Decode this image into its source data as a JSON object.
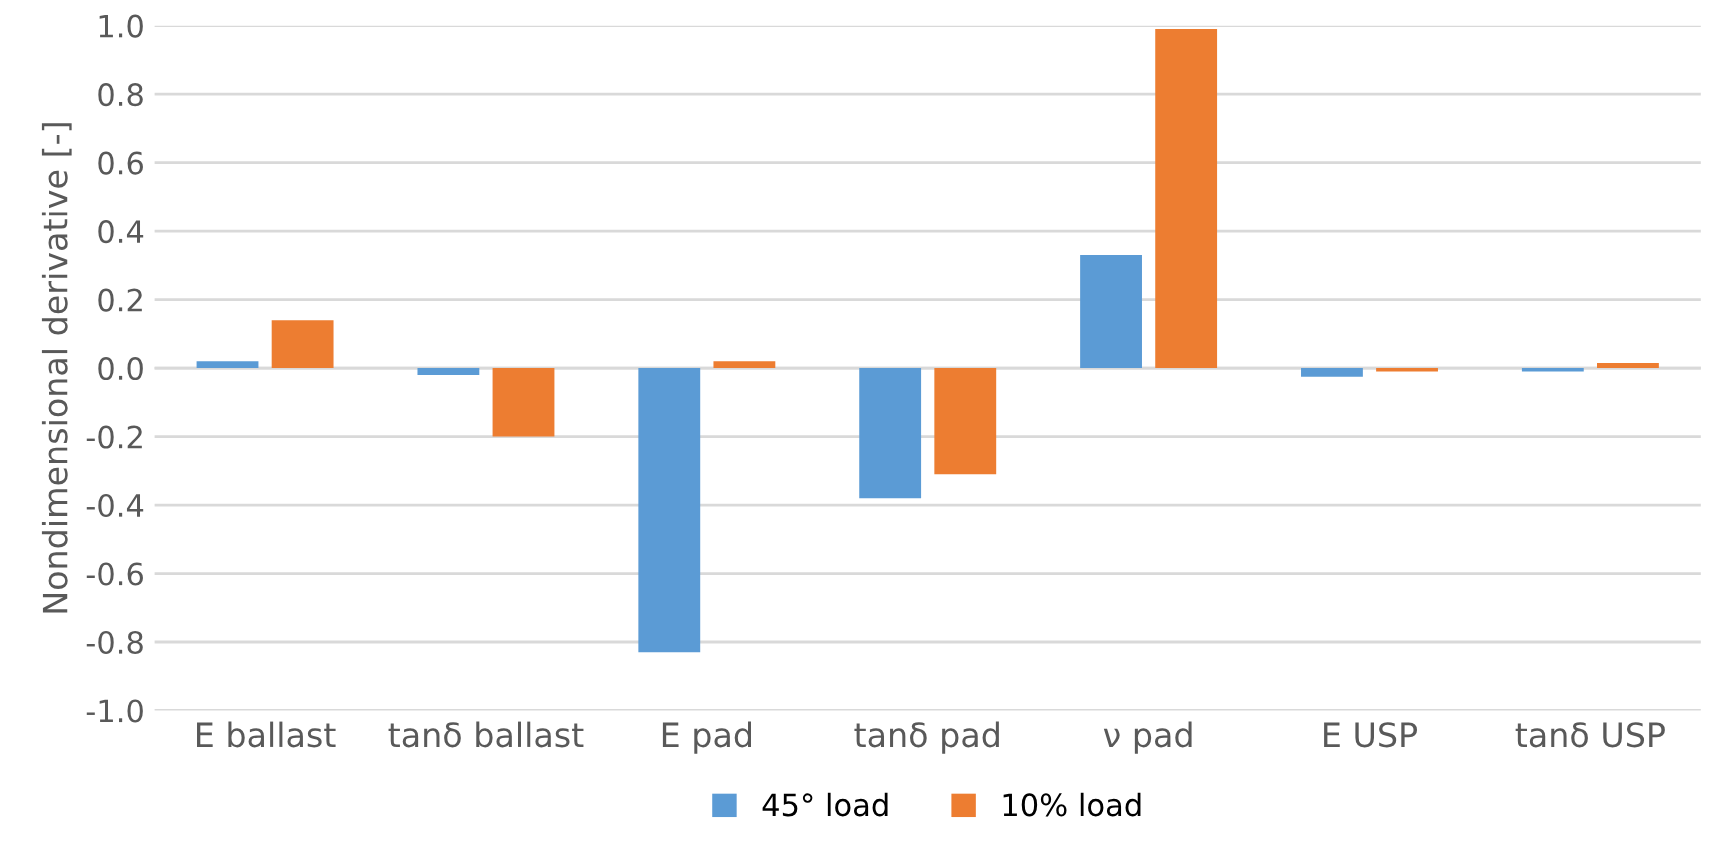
{
  "chart_data": {
    "type": "bar",
    "ylabel": "Nondimensional derivative [-]",
    "categories": [
      "E ballast",
      "tanδ ballast",
      "E pad",
      "tanδ pad",
      "ν pad",
      "E USP",
      "tanδ USP"
    ],
    "series": [
      {
        "name": "45° load",
        "color": "#5b9bd5",
        "values": [
          0.02,
          -0.02,
          -0.83,
          -0.38,
          0.33,
          -0.025,
          -0.01
        ]
      },
      {
        "name": "10% load",
        "color": "#ed7d31",
        "values": [
          0.14,
          -0.2,
          0.02,
          -0.31,
          0.99,
          -0.01,
          0.015
        ]
      }
    ],
    "ylim": [
      -1.0,
      1.0
    ],
    "yticks": [
      {
        "value": 1.0,
        "label": "1.0"
      },
      {
        "value": 0.8,
        "label": "0.8"
      },
      {
        "value": 0.6,
        "label": "0.6"
      },
      {
        "value": 0.4,
        "label": "0.4"
      },
      {
        "value": 0.2,
        "label": "0.2"
      },
      {
        "value": 0.0,
        "label": "0.0"
      },
      {
        "value": -0.2,
        "label": "-0.2"
      },
      {
        "value": -0.4,
        "label": "-0.4"
      },
      {
        "value": -0.6,
        "label": "-0.6"
      },
      {
        "value": -0.8,
        "label": "-0.8"
      },
      {
        "value": -1.0,
        "label": "-1.0"
      }
    ],
    "grid": "y",
    "legend": "bottom"
  }
}
